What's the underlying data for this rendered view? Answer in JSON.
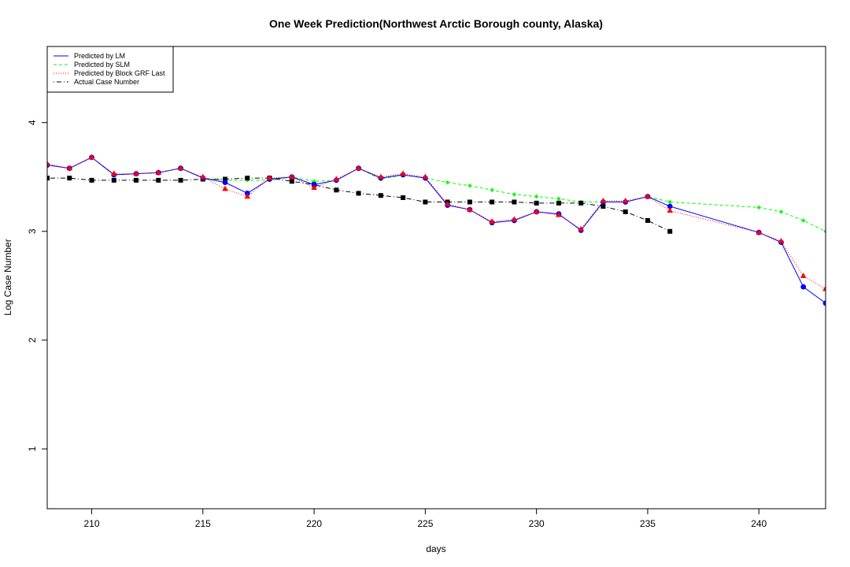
{
  "chart_data": {
    "type": "line",
    "title": "One Week Prediction(Northwest Arctic Borough county, Alaska)",
    "xlabel": "days",
    "ylabel": "Log Case Number",
    "xlim": [
      208,
      243
    ],
    "ylim": [
      0.45,
      4.7
    ],
    "x_ticks": [
      210,
      215,
      220,
      225,
      230,
      235,
      240
    ],
    "y_ticks": [
      1,
      2,
      3,
      4
    ],
    "grid": false,
    "legend_position": "top-left",
    "series": [
      {
        "name": "Predicted by LM",
        "color": "#0000ff",
        "line_style": "solid",
        "marker": "circle",
        "points": [
          [
            208,
            3.61
          ],
          [
            209,
            3.58
          ],
          [
            210,
            3.68
          ],
          [
            211,
            3.52
          ],
          [
            212,
            3.53
          ],
          [
            213,
            3.54
          ],
          [
            214,
            3.58
          ],
          [
            215,
            3.49
          ],
          [
            216,
            3.45
          ],
          [
            217,
            3.35
          ],
          [
            218,
            3.48
          ],
          [
            219,
            3.5
          ],
          [
            220,
            3.43
          ],
          [
            221,
            3.47
          ],
          [
            222,
            3.58
          ],
          [
            223,
            3.49
          ],
          [
            224,
            3.52
          ],
          [
            225,
            3.49
          ],
          [
            226,
            3.24
          ],
          [
            227,
            3.2
          ],
          [
            228,
            3.08
          ],
          [
            229,
            3.1
          ],
          [
            230,
            3.18
          ],
          [
            231,
            3.16
          ],
          [
            232,
            3.01
          ],
          [
            233,
            3.27
          ],
          [
            234,
            3.27
          ],
          [
            235,
            3.32
          ],
          [
            236,
            3.23
          ],
          [
            240,
            2.99
          ],
          [
            241,
            2.9
          ],
          [
            242,
            2.49
          ],
          [
            243,
            2.34
          ]
        ]
      },
      {
        "name": "Predicted by SLM",
        "color": "#00ff00",
        "line_style": "dashed",
        "marker": "diamond",
        "points": [
          [
            208,
            3.61
          ],
          [
            209,
            3.58
          ],
          [
            210,
            3.68
          ],
          [
            211,
            3.52
          ],
          [
            212,
            3.53
          ],
          [
            213,
            3.54
          ],
          [
            214,
            3.58
          ],
          [
            215,
            3.49
          ],
          [
            216,
            3.47
          ],
          [
            217,
            3.47
          ],
          [
            218,
            3.47
          ],
          [
            219,
            3.5
          ],
          [
            220,
            3.46
          ],
          [
            221,
            3.47
          ],
          [
            222,
            3.58
          ],
          [
            223,
            3.48
          ],
          [
            224,
            3.52
          ],
          [
            225,
            3.49
          ],
          [
            226,
            3.45
          ],
          [
            227,
            3.42
          ],
          [
            228,
            3.38
          ],
          [
            229,
            3.34
          ],
          [
            230,
            3.32
          ],
          [
            231,
            3.3
          ],
          [
            232,
            3.27
          ],
          [
            233,
            3.27
          ],
          [
            234,
            3.27
          ],
          [
            235,
            3.32
          ],
          [
            236,
            3.27
          ],
          [
            240,
            3.22
          ],
          [
            241,
            3.18
          ],
          [
            242,
            3.1
          ],
          [
            243,
            3.0
          ]
        ]
      },
      {
        "name": "Predicted by Block GRF Last",
        "color": "#ff0000",
        "line_style": "dotted",
        "marker": "triangle",
        "points": [
          [
            208,
            3.62
          ],
          [
            209,
            3.58
          ],
          [
            210,
            3.68
          ],
          [
            211,
            3.53
          ],
          [
            212,
            3.53
          ],
          [
            213,
            3.54
          ],
          [
            214,
            3.58
          ],
          [
            215,
            3.5
          ],
          [
            216,
            3.39
          ],
          [
            217,
            3.32
          ],
          [
            218,
            3.49
          ],
          [
            219,
            3.5
          ],
          [
            220,
            3.4
          ],
          [
            221,
            3.48
          ],
          [
            222,
            3.58
          ],
          [
            223,
            3.5
          ],
          [
            224,
            3.53
          ],
          [
            225,
            3.5
          ],
          [
            226,
            3.25
          ],
          [
            227,
            3.2
          ],
          [
            228,
            3.09
          ],
          [
            229,
            3.11
          ],
          [
            230,
            3.18
          ],
          [
            231,
            3.15
          ],
          [
            232,
            3.02
          ],
          [
            233,
            3.28
          ],
          [
            234,
            3.28
          ],
          [
            235,
            3.32
          ],
          [
            236,
            3.19
          ],
          [
            240,
            2.99
          ],
          [
            241,
            2.91
          ],
          [
            242,
            2.59
          ],
          [
            243,
            2.47
          ]
        ]
      },
      {
        "name": "Actual Case Number",
        "color": "#000000",
        "line_style": "dotdash",
        "marker": "square",
        "points": [
          [
            208,
            3.49
          ],
          [
            209,
            3.49
          ],
          [
            210,
            3.47
          ],
          [
            211,
            3.47
          ],
          [
            212,
            3.47
          ],
          [
            213,
            3.47
          ],
          [
            214,
            3.47
          ],
          [
            215,
            3.48
          ],
          [
            216,
            3.48
          ],
          [
            217,
            3.49
          ],
          [
            218,
            3.49
          ],
          [
            219,
            3.46
          ],
          [
            220,
            3.43
          ],
          [
            221,
            3.38
          ],
          [
            222,
            3.35
          ],
          [
            223,
            3.33
          ],
          [
            224,
            3.31
          ],
          [
            225,
            3.27
          ],
          [
            226,
            3.27
          ],
          [
            227,
            3.27
          ],
          [
            228,
            3.27
          ],
          [
            229,
            3.27
          ],
          [
            230,
            3.26
          ],
          [
            231,
            3.26
          ],
          [
            232,
            3.26
          ],
          [
            233,
            3.23
          ],
          [
            234,
            3.18
          ],
          [
            235,
            3.1
          ],
          [
            236,
            3.0
          ]
        ]
      }
    ]
  }
}
